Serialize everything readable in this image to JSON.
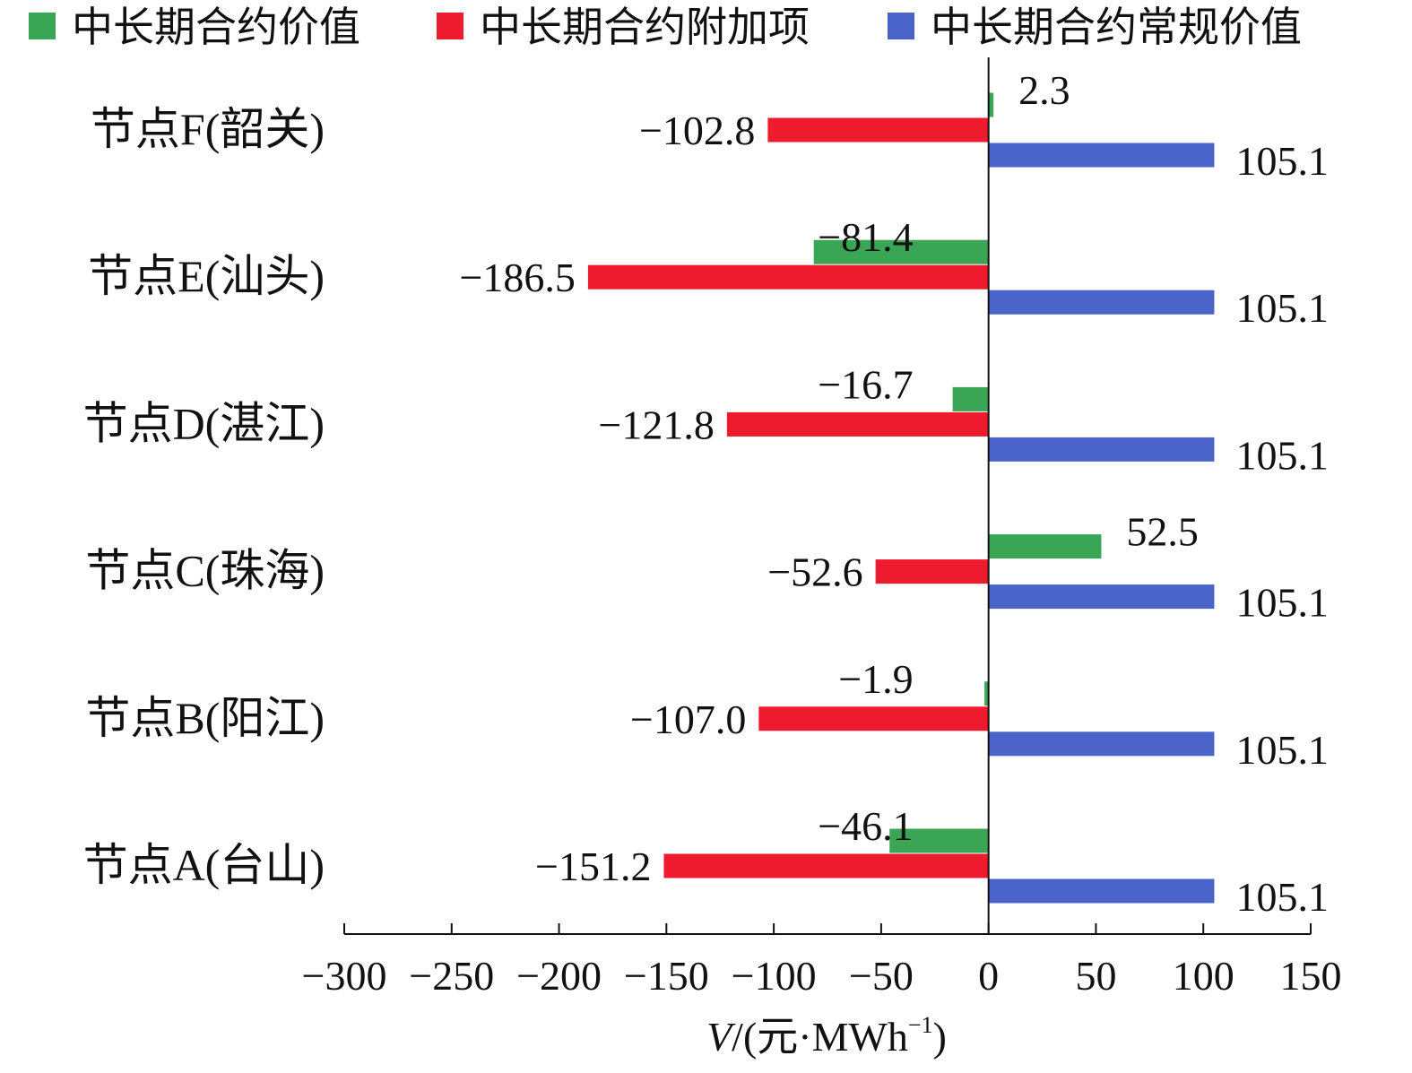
{
  "colors": {
    "green": "#3aa655",
    "red": "#ee1b2e",
    "blue": "#4a63c8",
    "axis": "#111111"
  },
  "chart_data": {
    "type": "bar",
    "orientation": "horizontal",
    "title": "",
    "categories": [
      "节点F(韶关)",
      "节点E(汕头)",
      "节点D(湛江)",
      "节点C(珠海)",
      "节点B(阳江)",
      "节点A(台山)"
    ],
    "series": [
      {
        "name": "中长期合约价值",
        "color": "#3aa655",
        "values": [
          2.3,
          -81.4,
          -16.7,
          52.5,
          -1.9,
          -46.1
        ]
      },
      {
        "name": "中长期合约附加项",
        "color": "#ee1b2e",
        "values": [
          -102.8,
          -186.5,
          -121.8,
          -52.6,
          -107.0,
          -151.2
        ]
      },
      {
        "name": "中长期合约常规价值",
        "color": "#4a63c8",
        "values": [
          105.1,
          105.1,
          105.1,
          105.1,
          105.1,
          105.1
        ]
      }
    ],
    "data_labels": [
      [
        "2.3",
        "−81.4",
        "−16.7",
        "52.5",
        "−1.9",
        "−46.1"
      ],
      [
        "−102.8",
        "−186.5",
        "−121.8",
        "−52.6",
        "−107.0",
        "−151.2"
      ],
      [
        "105.1",
        "105.1",
        "105.1",
        "105.1",
        "105.1",
        "105.1"
      ]
    ],
    "xlim": [
      -300,
      150
    ],
    "xticks": [
      -300,
      -250,
      -200,
      -150,
      -100,
      -50,
      0,
      50,
      100,
      150
    ],
    "xtick_labels": [
      "−300",
      "−250",
      "−200",
      "−150",
      "−100",
      "−50",
      "0",
      "50",
      "100",
      "150"
    ],
    "xlabel": {
      "var": "V",
      "slash": "/",
      "unit_open": "(元·MWh",
      "unit_sup": "−1",
      "unit_close": ")"
    },
    "ylabel": "",
    "legend_position": "top",
    "grid": false
  }
}
